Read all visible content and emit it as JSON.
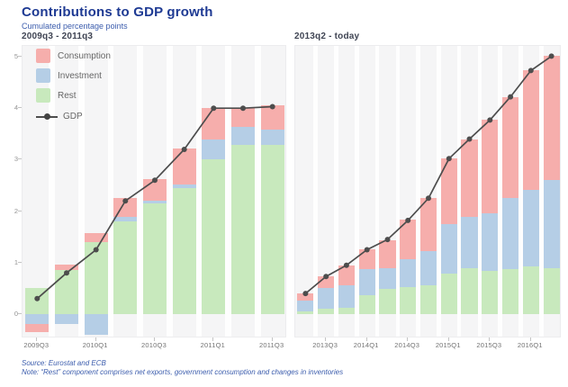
{
  "page": {
    "title": "Contributions to GDP growth",
    "subtitle": "Cumulated percentage points"
  },
  "colors": {
    "consumption": "#f6aeac",
    "investment": "#b5cee6",
    "rest": "#c8e9bd",
    "gdp_line": "#4d4d4d",
    "title_blue": "#1e3a93",
    "note_blue": "#3c5dad",
    "plot_bg": "#f5f5f6"
  },
  "legend": {
    "items": [
      {
        "label": "Consumption",
        "series": "consumption"
      },
      {
        "label": "Investment",
        "series": "investment"
      },
      {
        "label": "Rest",
        "series": "rest"
      }
    ],
    "gdp_label": "GDP"
  },
  "footer": {
    "source": "Source: Eurostat and ECB",
    "note": "Note: “Rest” component comprises net exports, government consumption and changes in inventories"
  },
  "chart_data": [
    {
      "type": "bar",
      "stacked": true,
      "title": "2009q3 - 2011q3",
      "categories": [
        "2009Q3",
        "2009Q4",
        "2010Q1",
        "2010Q2",
        "2010Q3",
        "2010Q4",
        "2011Q1",
        "2011Q2",
        "2011Q3"
      ],
      "series": [
        {
          "name": "rest",
          "values": [
            0.5,
            0.85,
            1.4,
            1.8,
            2.15,
            2.45,
            3.0,
            3.28,
            3.29
          ]
        },
        {
          "name": "investment",
          "values": [
            -0.2,
            -0.2,
            -0.4,
            0.08,
            0.06,
            0.06,
            0.4,
            0.36,
            0.29
          ]
        },
        {
          "name": "consumption",
          "values": [
            -0.15,
            0.12,
            0.17,
            0.37,
            0.42,
            0.7,
            0.6,
            0.36,
            0.47
          ]
        }
      ],
      "line_series": {
        "name": "GDP",
        "values": [
          0.3,
          0.8,
          1.25,
          2.2,
          2.6,
          3.2,
          4.0,
          4.0,
          4.03
        ]
      },
      "y_ticks": [
        0,
        1,
        2,
        3,
        4,
        5
      ],
      "x_tick_indices": [
        0,
        2,
        4,
        6,
        8
      ],
      "ylim": [
        -0.47,
        5.2
      ],
      "grid": "vertical-white",
      "legend_position": "top-left",
      "y_labels_shown": true
    },
    {
      "type": "bar",
      "stacked": true,
      "title": "2013q2 - today",
      "categories": [
        "2013Q2",
        "2013Q3",
        "2013Q4",
        "2014Q1",
        "2014Q2",
        "2014Q3",
        "2014Q4",
        "2015Q1",
        "2015Q2",
        "2015Q3",
        "2015Q4",
        "2016Q1",
        "2016Q2"
      ],
      "series": [
        {
          "name": "rest",
          "values": [
            0.05,
            0.1,
            0.13,
            0.37,
            0.49,
            0.52,
            0.56,
            0.79,
            0.9,
            0.84,
            0.87,
            0.93,
            0.9
          ]
        },
        {
          "name": "investment",
          "values": [
            0.22,
            0.4,
            0.43,
            0.5,
            0.41,
            0.54,
            0.66,
            0.95,
            0.99,
            1.12,
            1.38,
            1.49,
            1.71
          ]
        },
        {
          "name": "consumption",
          "values": [
            0.13,
            0.23,
            0.38,
            0.39,
            0.53,
            0.77,
            1.03,
            1.28,
            1.51,
            1.81,
            1.97,
            2.31,
            2.4
          ]
        }
      ],
      "line_series": {
        "name": "GDP",
        "values": [
          0.4,
          0.73,
          0.95,
          1.25,
          1.45,
          1.82,
          2.25,
          3.02,
          3.4,
          3.77,
          4.22,
          4.73,
          5.01
        ]
      },
      "y_ticks": [
        0,
        1,
        2,
        3,
        4,
        5
      ],
      "x_tick_indices": [
        1,
        3,
        5,
        7,
        9,
        11
      ],
      "ylim": [
        -0.47,
        5.2
      ],
      "grid": "vertical-white",
      "legend_position": "none",
      "y_labels_shown": false
    }
  ]
}
